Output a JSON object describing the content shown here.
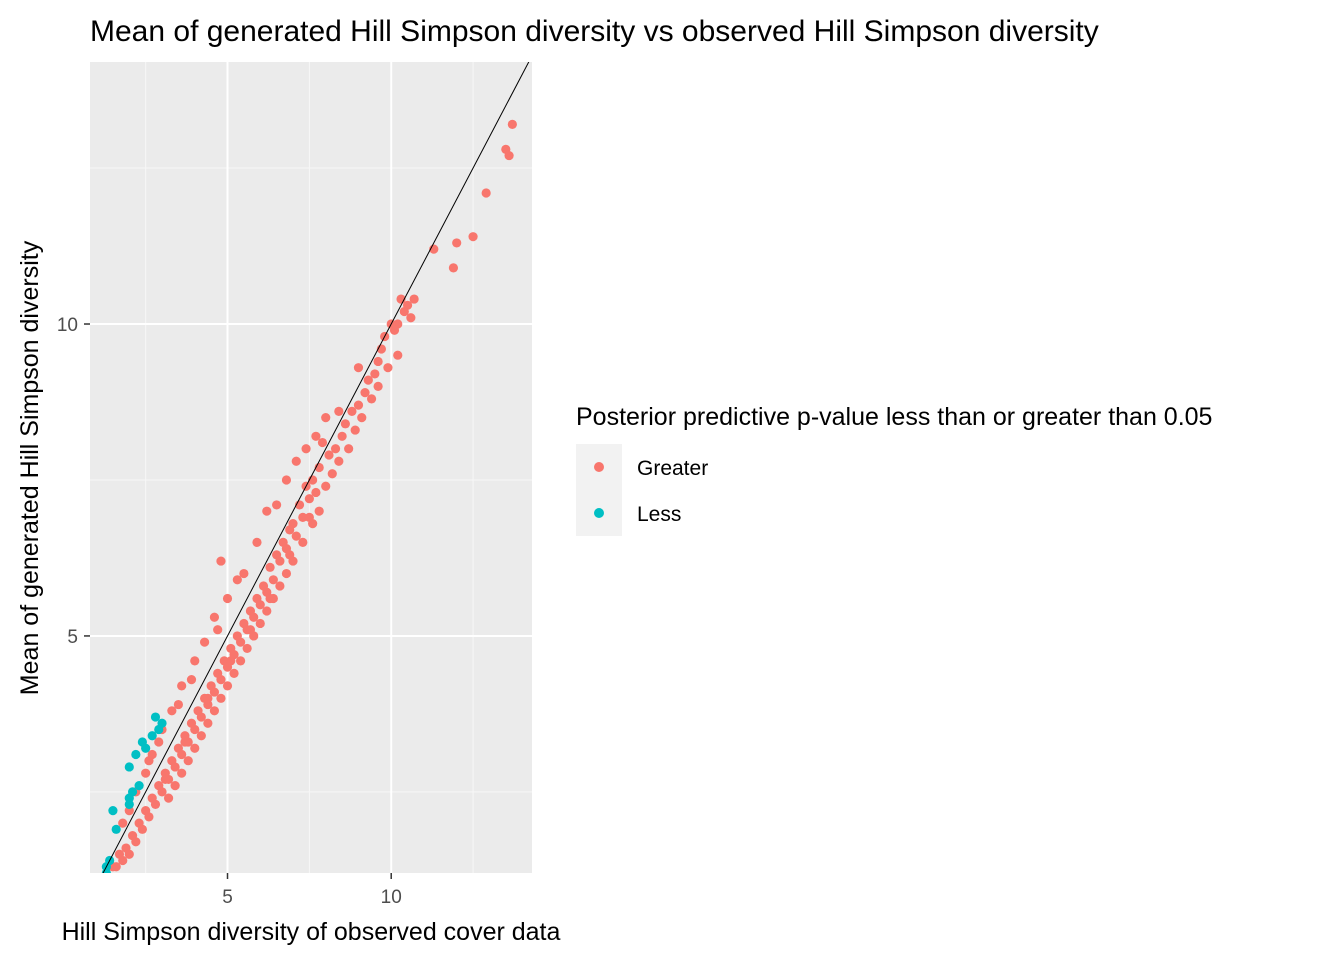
{
  "chart_data": {
    "type": "scatter",
    "title": "Mean of generated Hill Simpson diversity vs observed Hill Simpson diversity",
    "xlabel": "Hill Simpson diversity of observed cover data",
    "ylabel": "Mean of generated Hill Simpson diversity",
    "xlim": [
      0.8,
      14.3
    ],
    "ylim": [
      1.2,
      14.2
    ],
    "x_ticks": [
      5,
      10
    ],
    "y_ticks": [
      5,
      10
    ],
    "grid": true,
    "reference_line": {
      "slope": 1,
      "intercept": 0,
      "color": "#000000"
    },
    "legend": {
      "title": "Posterior predictive p-value less than or greater than 0.05",
      "position": "right"
    },
    "series": [
      {
        "name": "Greater",
        "color": "#F8766D",
        "points": [
          [
            13.7,
            13.2
          ],
          [
            13.5,
            12.8
          ],
          [
            13.6,
            12.7
          ],
          [
            12.9,
            12.1
          ],
          [
            12.5,
            11.4
          ],
          [
            12.0,
            11.3
          ],
          [
            11.3,
            11.2
          ],
          [
            11.9,
            10.9
          ],
          [
            10.3,
            10.4
          ],
          [
            10.7,
            10.4
          ],
          [
            10.5,
            10.3
          ],
          [
            10.4,
            10.2
          ],
          [
            10.6,
            10.1
          ],
          [
            10.2,
            10.0
          ],
          [
            10.0,
            10.0
          ],
          [
            10.1,
            9.9
          ],
          [
            9.8,
            9.8
          ],
          [
            9.7,
            9.6
          ],
          [
            10.2,
            9.5
          ],
          [
            9.6,
            9.4
          ],
          [
            9.9,
            9.3
          ],
          [
            9.5,
            9.2
          ],
          [
            9.3,
            9.1
          ],
          [
            9.6,
            9.0
          ],
          [
            9.2,
            8.9
          ],
          [
            9.4,
            8.8
          ],
          [
            9.0,
            8.7
          ],
          [
            9.1,
            8.5
          ],
          [
            8.8,
            8.6
          ],
          [
            8.6,
            8.4
          ],
          [
            8.9,
            8.3
          ],
          [
            8.5,
            8.2
          ],
          [
            7.9,
            8.1
          ],
          [
            8.3,
            8.0
          ],
          [
            8.7,
            8.0
          ],
          [
            8.1,
            7.9
          ],
          [
            8.4,
            7.8
          ],
          [
            7.8,
            7.7
          ],
          [
            8.2,
            7.6
          ],
          [
            7.6,
            7.5
          ],
          [
            7.4,
            7.4
          ],
          [
            8.0,
            7.4
          ],
          [
            7.7,
            7.3
          ],
          [
            7.5,
            7.2
          ],
          [
            7.2,
            7.1
          ],
          [
            7.8,
            7.0
          ],
          [
            7.3,
            6.9
          ],
          [
            7.0,
            6.8
          ],
          [
            7.6,
            6.8
          ],
          [
            6.9,
            6.7
          ],
          [
            7.1,
            6.6
          ],
          [
            6.7,
            6.5
          ],
          [
            7.3,
            6.5
          ],
          [
            6.8,
            6.4
          ],
          [
            6.5,
            6.3
          ],
          [
            7.0,
            6.2
          ],
          [
            6.6,
            6.2
          ],
          [
            6.3,
            6.1
          ],
          [
            6.8,
            6.0
          ],
          [
            6.4,
            5.9
          ],
          [
            6.1,
            5.8
          ],
          [
            6.6,
            5.8
          ],
          [
            6.2,
            5.7
          ],
          [
            5.9,
            5.6
          ],
          [
            6.4,
            5.6
          ],
          [
            6.0,
            5.5
          ],
          [
            5.7,
            5.4
          ],
          [
            6.2,
            5.4
          ],
          [
            5.8,
            5.3
          ],
          [
            5.5,
            5.2
          ],
          [
            6.0,
            5.2
          ],
          [
            5.6,
            5.1
          ],
          [
            5.3,
            5.0
          ],
          [
            5.8,
            5.0
          ],
          [
            5.4,
            4.9
          ],
          [
            5.1,
            4.8
          ],
          [
            5.6,
            4.8
          ],
          [
            5.2,
            4.7
          ],
          [
            4.9,
            4.6
          ],
          [
            5.4,
            4.6
          ],
          [
            5.0,
            4.5
          ],
          [
            4.7,
            4.4
          ],
          [
            5.2,
            4.4
          ],
          [
            4.8,
            4.3
          ],
          [
            4.5,
            4.2
          ],
          [
            5.0,
            4.2
          ],
          [
            4.6,
            4.1
          ],
          [
            4.3,
            4.0
          ],
          [
            4.8,
            4.0
          ],
          [
            4.4,
            3.9
          ],
          [
            4.1,
            3.8
          ],
          [
            4.6,
            3.8
          ],
          [
            4.2,
            3.7
          ],
          [
            3.9,
            3.6
          ],
          [
            4.4,
            3.6
          ],
          [
            4.0,
            3.5
          ],
          [
            3.7,
            3.4
          ],
          [
            4.2,
            3.4
          ],
          [
            3.8,
            3.3
          ],
          [
            3.5,
            3.2
          ],
          [
            4.0,
            3.2
          ],
          [
            3.6,
            3.1
          ],
          [
            3.3,
            3.0
          ],
          [
            3.8,
            3.0
          ],
          [
            3.4,
            2.9
          ],
          [
            3.1,
            2.8
          ],
          [
            3.6,
            2.8
          ],
          [
            3.2,
            2.7
          ],
          [
            2.9,
            2.6
          ],
          [
            3.4,
            2.6
          ],
          [
            3.0,
            2.5
          ],
          [
            2.7,
            2.4
          ],
          [
            3.2,
            2.4
          ],
          [
            2.8,
            2.3
          ],
          [
            2.5,
            2.2
          ],
          [
            2.6,
            2.1
          ],
          [
            2.3,
            2.0
          ],
          [
            2.4,
            1.9
          ],
          [
            2.1,
            1.8
          ],
          [
            2.2,
            1.7
          ],
          [
            1.9,
            1.6
          ],
          [
            2.0,
            1.5
          ],
          [
            1.7,
            1.5
          ],
          [
            1.8,
            1.4
          ],
          [
            1.6,
            1.3
          ],
          [
            1.5,
            1.3
          ],
          [
            6.8,
            7.5
          ],
          [
            6.2,
            7.0
          ],
          [
            4.8,
            6.2
          ],
          [
            5.9,
            6.5
          ],
          [
            5.5,
            6.0
          ],
          [
            5.0,
            5.6
          ],
          [
            4.6,
            5.3
          ],
          [
            4.3,
            4.9
          ],
          [
            4.0,
            4.6
          ],
          [
            3.6,
            4.2
          ],
          [
            3.3,
            3.8
          ],
          [
            3.0,
            3.5
          ],
          [
            2.7,
            3.1
          ],
          [
            2.5,
            2.8
          ],
          [
            2.2,
            2.5
          ],
          [
            2.0,
            2.2
          ],
          [
            1.8,
            2.0
          ],
          [
            7.1,
            7.8
          ],
          [
            7.4,
            8.0
          ],
          [
            7.7,
            8.2
          ],
          [
            8.0,
            8.5
          ],
          [
            8.4,
            8.6
          ],
          [
            9.0,
            9.3
          ],
          [
            5.3,
            5.9
          ],
          [
            6.5,
            7.1
          ],
          [
            4.7,
            5.1
          ],
          [
            3.9,
            4.3
          ],
          [
            3.5,
            3.9
          ],
          [
            2.9,
            3.3
          ],
          [
            2.6,
            3.0
          ],
          [
            5.1,
            4.6
          ],
          [
            5.7,
            5.1
          ],
          [
            6.3,
            5.6
          ],
          [
            6.9,
            6.3
          ],
          [
            7.5,
            6.9
          ],
          [
            4.4,
            4.0
          ],
          [
            3.7,
            3.3
          ],
          [
            3.1,
            2.7
          ]
        ]
      },
      {
        "name": "Less",
        "color": "#00BFC4",
        "points": [
          [
            1.3,
            1.1
          ],
          [
            1.3,
            1.2
          ],
          [
            1.3,
            1.3
          ],
          [
            1.4,
            1.4
          ],
          [
            1.6,
            1.9
          ],
          [
            1.5,
            2.2
          ],
          [
            2.0,
            2.3
          ],
          [
            2.0,
            2.4
          ],
          [
            2.1,
            2.5
          ],
          [
            2.3,
            2.6
          ],
          [
            2.0,
            2.9
          ],
          [
            2.2,
            3.1
          ],
          [
            2.5,
            3.2
          ],
          [
            2.4,
            3.3
          ],
          [
            2.7,
            3.4
          ],
          [
            2.9,
            3.5
          ],
          [
            3.0,
            3.6
          ],
          [
            2.8,
            3.7
          ]
        ]
      }
    ]
  }
}
